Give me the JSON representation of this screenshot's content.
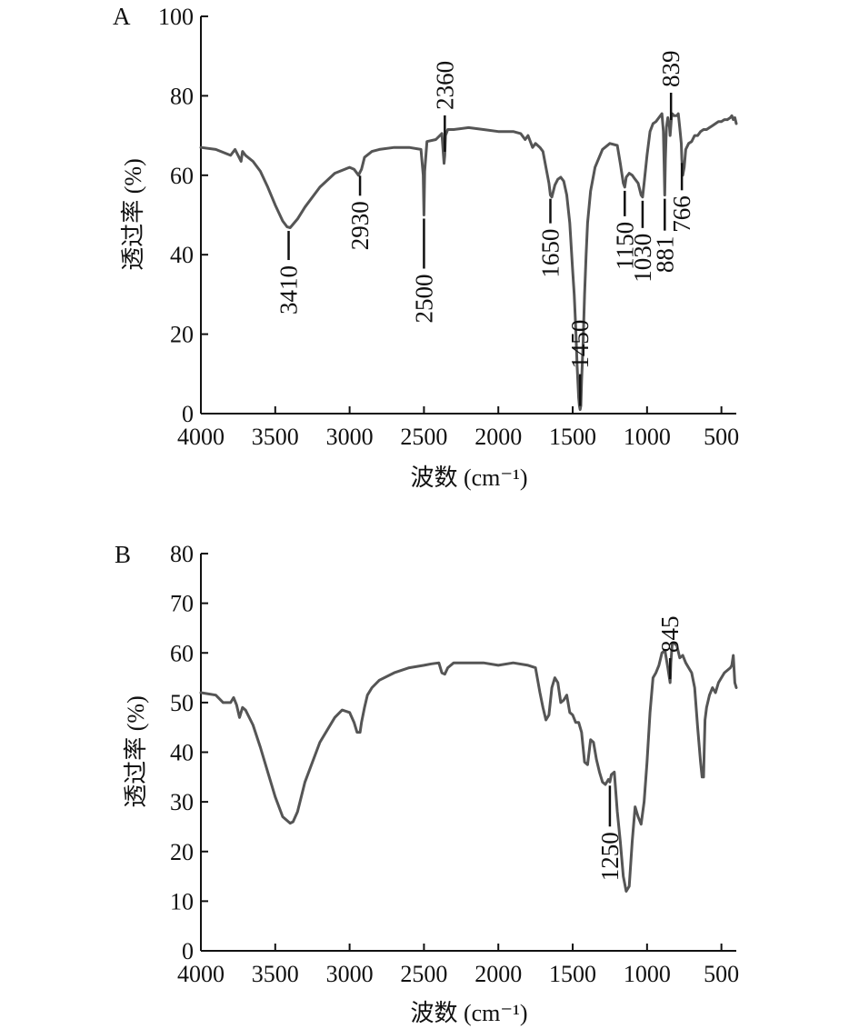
{
  "chart_data": [
    {
      "panel": "A",
      "type": "line",
      "xlabel": "波数 (cm⁻¹)",
      "ylabel": "透过率 (%)",
      "xlim": [
        4000,
        400
      ],
      "ylim": [
        0,
        100
      ],
      "x_ticks": [
        4000,
        3500,
        3000,
        2500,
        2000,
        1500,
        1000,
        500
      ],
      "y_ticks": [
        0,
        20,
        40,
        60,
        80,
        100
      ],
      "grid": false,
      "series": [
        {
          "x": [
            4000,
            3900,
            3800,
            3770,
            3750,
            3730,
            3720,
            3700,
            3650,
            3600,
            3550,
            3500,
            3450,
            3420,
            3400,
            3350,
            3300,
            3200,
            3100,
            3000,
            2970,
            2940,
            2930,
            2920,
            2900,
            2850,
            2800,
            2700,
            2600,
            2520,
            2505,
            2500,
            2495,
            2480,
            2420,
            2380,
            2365,
            2360,
            2355,
            2340,
            2300,
            2200,
            2100,
            2000,
            1900,
            1850,
            1820,
            1800,
            1770,
            1750,
            1720,
            1700,
            1680,
            1660,
            1650,
            1640,
            1620,
            1600,
            1580,
            1560,
            1540,
            1520,
            1500,
            1490,
            1480,
            1470,
            1460,
            1455,
            1450,
            1445,
            1440,
            1430,
            1420,
            1410,
            1400,
            1380,
            1350,
            1300,
            1250,
            1200,
            1180,
            1160,
            1150,
            1140,
            1120,
            1100,
            1080,
            1060,
            1040,
            1030,
            1020,
            1000,
            980,
            960,
            940,
            920,
            900,
            890,
            885,
            881,
            877,
            870,
            860,
            850,
            845,
            839,
            835,
            830,
            820,
            800,
            790,
            780,
            770,
            766,
            760,
            750,
            740,
            720,
            700,
            680,
            660,
            640,
            620,
            600,
            580,
            560,
            540,
            520,
            500,
            480,
            460,
            440,
            430,
            420,
            410,
            400
          ],
          "y": [
            67,
            66.5,
            65,
            66.5,
            65,
            63.5,
            66,
            65,
            63.5,
            61,
            57,
            52.5,
            48.5,
            47,
            46.8,
            49,
            52,
            57,
            60.5,
            62,
            61.5,
            60,
            60.8,
            61.5,
            64.5,
            66,
            66.5,
            67,
            67,
            66.5,
            60,
            50,
            61,
            68.5,
            69,
            70.5,
            63,
            65,
            70,
            71.5,
            71.5,
            72,
            71.5,
            71,
            71,
            70.5,
            69,
            70,
            67,
            68,
            67,
            66,
            62,
            58,
            55,
            54.5,
            57.5,
            59,
            59.5,
            58.5,
            55,
            48,
            36,
            30,
            22,
            12,
            4,
            2,
            1,
            2,
            8,
            18,
            30,
            40,
            48,
            56,
            62,
            66.5,
            68,
            67.5,
            63,
            58,
            57,
            59.5,
            60.5,
            60,
            59,
            58,
            55,
            54.5,
            58,
            65,
            71,
            73,
            73.5,
            74.5,
            75.5,
            71,
            63,
            55,
            64,
            72,
            74.5,
            72.5,
            70,
            73,
            75,
            75.5,
            75,
            75,
            75.5,
            72,
            68,
            64,
            60,
            62,
            66.5,
            68,
            68.5,
            70,
            70,
            71,
            71.5,
            71.5,
            72,
            72.5,
            73,
            73.5,
            73.5,
            74,
            74,
            74.5,
            75,
            74,
            74.5,
            73
          ]
        }
      ],
      "annotations": [
        {
          "label": "3410",
          "x": 3410
        },
        {
          "label": "2930",
          "x": 2930
        },
        {
          "label": "2500",
          "x": 2500
        },
        {
          "label": "2360",
          "x": 2360
        },
        {
          "label": "1650",
          "x": 1650
        },
        {
          "label": "1450",
          "x": 1450
        },
        {
          "label": "1150",
          "x": 1150
        },
        {
          "label": "1030",
          "x": 1030
        },
        {
          "label": "881",
          "x": 881
        },
        {
          "label": "839",
          "x": 839
        },
        {
          "label": "766",
          "x": 766
        }
      ]
    },
    {
      "panel": "B",
      "type": "line",
      "xlabel": "波数 (cm⁻¹)",
      "ylabel": "透过率 (%)",
      "xlim": [
        4000,
        400
      ],
      "ylim": [
        0,
        80
      ],
      "x_ticks": [
        4000,
        3500,
        3000,
        2500,
        2000,
        1500,
        1000,
        500
      ],
      "y_ticks": [
        0,
        10,
        20,
        30,
        40,
        50,
        60,
        70,
        80
      ],
      "grid": false,
      "series": [
        {
          "x": [
            4000,
            3900,
            3850,
            3800,
            3780,
            3760,
            3740,
            3720,
            3700,
            3650,
            3600,
            3550,
            3500,
            3450,
            3400,
            3380,
            3350,
            3300,
            3200,
            3100,
            3050,
            3000,
            2970,
            2950,
            2930,
            2920,
            2900,
            2880,
            2850,
            2800,
            2700,
            2600,
            2500,
            2450,
            2400,
            2380,
            2360,
            2340,
            2300,
            2200,
            2100,
            2000,
            1900,
            1800,
            1750,
            1720,
            1700,
            1680,
            1660,
            1640,
            1620,
            1600,
            1580,
            1560,
            1540,
            1520,
            1500,
            1480,
            1460,
            1440,
            1420,
            1400,
            1380,
            1360,
            1340,
            1320,
            1300,
            1280,
            1260,
            1250,
            1240,
            1220,
            1200,
            1180,
            1160,
            1140,
            1120,
            1100,
            1080,
            1060,
            1040,
            1020,
            1000,
            980,
            960,
            940,
            920,
            900,
            880,
            860,
            850,
            845,
            840,
            830,
            820,
            800,
            780,
            760,
            740,
            720,
            700,
            680,
            660,
            640,
            630,
            620,
            615,
            610,
            600,
            580,
            560,
            540,
            520,
            500,
            480,
            460,
            440,
            430,
            420,
            410,
            400
          ],
          "y": [
            52,
            51.5,
            50,
            50,
            51,
            49.5,
            47,
            49,
            48.5,
            45.5,
            41,
            36,
            31,
            27,
            25.7,
            26,
            28,
            34,
            42,
            47,
            48.5,
            48,
            46,
            44,
            44,
            46,
            49,
            51.5,
            53,
            54.5,
            56,
            57,
            57.5,
            57.8,
            58,
            56,
            55.7,
            57,
            58,
            58,
            58,
            57.5,
            58,
            57.5,
            57,
            52,
            49,
            46.5,
            47.5,
            53,
            55,
            54,
            50,
            50.5,
            51.5,
            48,
            47.5,
            46,
            46,
            44,
            38,
            37.5,
            42.5,
            42,
            38.5,
            36,
            34,
            33.5,
            34.5,
            34,
            35.5,
            36,
            28,
            22,
            15,
            12,
            13,
            22,
            29,
            27,
            25.5,
            30,
            38,
            48,
            55,
            56,
            57.5,
            60,
            60.5,
            57,
            55,
            54,
            58,
            62,
            62,
            61.5,
            59,
            59.5,
            58,
            57,
            56,
            53,
            45,
            38,
            35,
            35,
            41,
            46.5,
            49,
            51.5,
            53,
            52,
            54,
            55,
            56,
            56.5,
            57,
            57.5,
            59.5,
            54,
            53
          ]
        }
      ],
      "annotations": [
        {
          "label": "1250",
          "x": 1250
        },
        {
          "label": "845",
          "x": 845
        }
      ]
    }
  ]
}
